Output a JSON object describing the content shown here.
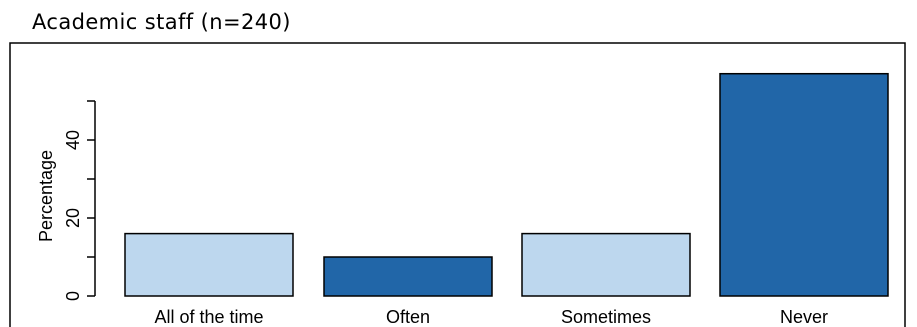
{
  "page_title": "Academic staff (n=240)",
  "chart_data": {
    "type": "bar",
    "categories": [
      "All of the time",
      "Often",
      "Sometimes",
      "Never"
    ],
    "values": [
      16,
      10,
      16,
      57
    ],
    "colors": [
      "#bdd7ee",
      "#2166a8",
      "#bdd7ee",
      "#2166a8"
    ],
    "bar_outline_color": "#000000",
    "plot_frame_color": "#000000",
    "title": "Academic staff (n=240)",
    "xlabel": "",
    "ylabel": "Percentage",
    "ylim": [
      0,
      60
    ],
    "yticks": [
      0,
      20,
      40
    ],
    "grid": false,
    "legend": "none"
  }
}
